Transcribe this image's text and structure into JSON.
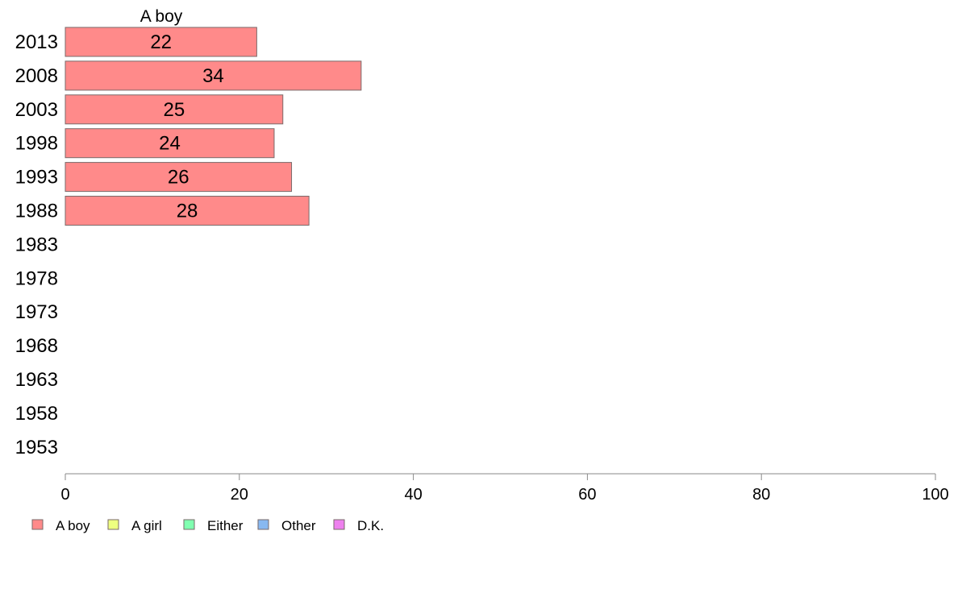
{
  "chart_data": {
    "type": "bar",
    "orientation": "horizontal",
    "stacked": true,
    "series_title": "A boy",
    "categories": [
      "2013",
      "2008",
      "2003",
      "1998",
      "1993",
      "1988",
      "1983",
      "1978",
      "1973",
      "1968",
      "1963",
      "1958",
      "1953"
    ],
    "series": [
      {
        "name": "A boy",
        "color": "#ff8a8a",
        "values": [
          22,
          34,
          25,
          24,
          26,
          28,
          null,
          null,
          null,
          null,
          null,
          null,
          null
        ]
      }
    ],
    "legend": [
      {
        "name": "A boy",
        "color": "#ff8a8a"
      },
      {
        "name": "A girl",
        "color": "#eeff80"
      },
      {
        "name": "Either",
        "color": "#80ffb0"
      },
      {
        "name": "Other",
        "color": "#88b8f0"
      },
      {
        "name": "D.K.",
        "color": "#ee80ee"
      }
    ],
    "xlim": [
      0,
      100
    ],
    "xticks": [
      0,
      20,
      40,
      60,
      80,
      100
    ],
    "grid": false,
    "legend_position": "bottom-left"
  }
}
